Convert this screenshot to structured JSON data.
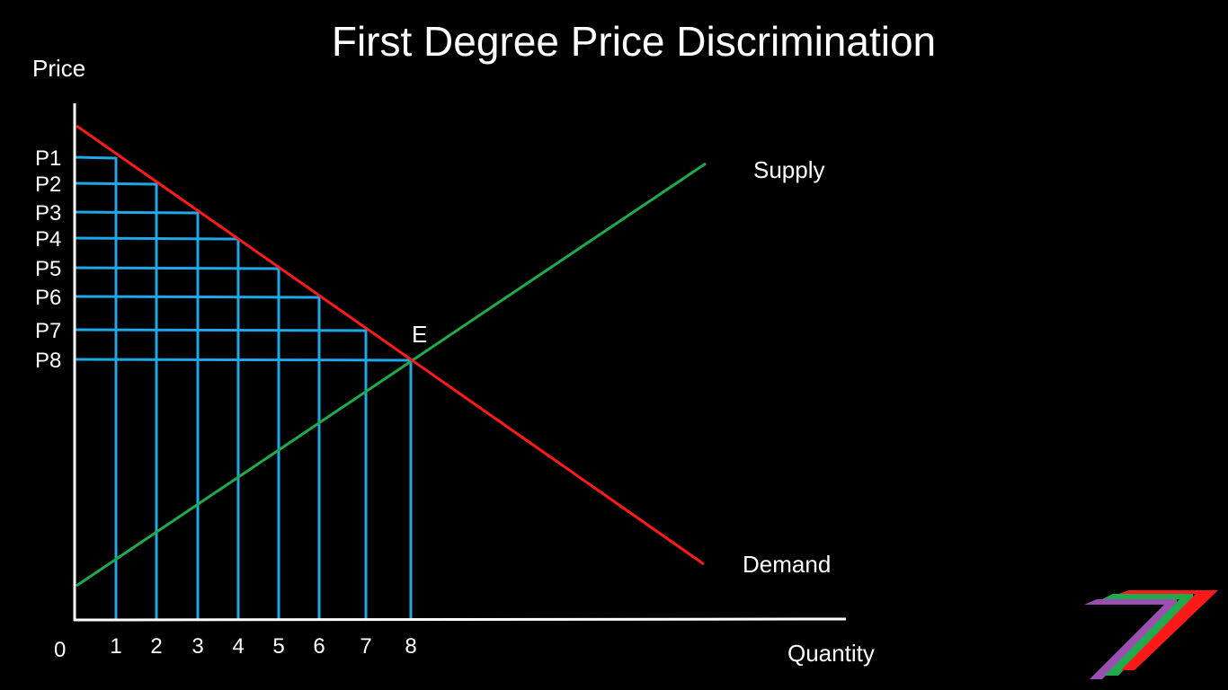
{
  "slide": {
    "title": "First Degree Price Discrimination"
  },
  "axes": {
    "y_label": "Price",
    "x_label": "Quantity",
    "origin_label": "0"
  },
  "curves": {
    "supply": {
      "label": "Supply",
      "color": "#1faa4e"
    },
    "demand": {
      "label": "Demand",
      "color": "#ff1a1a"
    }
  },
  "equilibrium": {
    "label": "E"
  },
  "price_levels": [
    "P1",
    "P2",
    "P3",
    "P4",
    "P5",
    "P6",
    "P7",
    "P8"
  ],
  "quantity_ticks": [
    "1",
    "2",
    "3",
    "4",
    "5",
    "6",
    "7",
    "8"
  ],
  "colors": {
    "background": "#000000",
    "axis": "#ffffff",
    "price_lines": "#1fa8e8",
    "logo_purple": "#9b4fb0",
    "logo_green": "#1faa4e",
    "logo_red": "#ff1a1a"
  },
  "logo": {
    "name": "brand-7-logo"
  }
}
